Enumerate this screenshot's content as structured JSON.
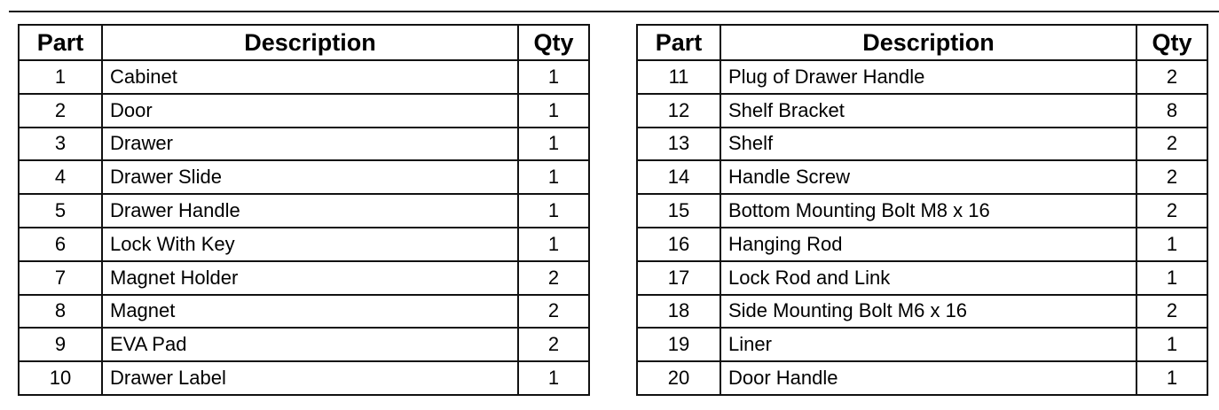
{
  "headers": {
    "part": "Part",
    "description": "Description",
    "qty": "Qty"
  },
  "left_table": [
    {
      "part": "1",
      "description": "Cabinet",
      "qty": "1"
    },
    {
      "part": "2",
      "description": "Door",
      "qty": "1"
    },
    {
      "part": "3",
      "description": "Drawer",
      "qty": "1"
    },
    {
      "part": "4",
      "description": "Drawer Slide",
      "qty": "1"
    },
    {
      "part": "5",
      "description": "Drawer Handle",
      "qty": "1"
    },
    {
      "part": "6",
      "description": "Lock With Key",
      "qty": "1"
    },
    {
      "part": "7",
      "description": "Magnet Holder",
      "qty": "2"
    },
    {
      "part": "8",
      "description": "Magnet",
      "qty": "2"
    },
    {
      "part": "9",
      "description": "EVA Pad",
      "qty": "2"
    },
    {
      "part": "10",
      "description": "Drawer Label",
      "qty": "1"
    }
  ],
  "right_table": [
    {
      "part": "11",
      "description": "Plug of Drawer Handle",
      "qty": "2"
    },
    {
      "part": "12",
      "description": "Shelf Bracket",
      "qty": "8"
    },
    {
      "part": "13",
      "description": "Shelf",
      "qty": "2"
    },
    {
      "part": "14",
      "description": "Handle Screw",
      "qty": "2"
    },
    {
      "part": "15",
      "description": "Bottom Mounting Bolt M8 x 16",
      "qty": "2"
    },
    {
      "part": "16",
      "description": "Hanging Rod",
      "qty": "1"
    },
    {
      "part": "17",
      "description": "Lock Rod and Link",
      "qty": "1"
    },
    {
      "part": "18",
      "description": "Side Mounting Bolt M6 x 16",
      "qty": "2"
    },
    {
      "part": "19",
      "description": "Liner",
      "qty": "1"
    },
    {
      "part": "20",
      "description": "Door Handle",
      "qty": "1"
    }
  ]
}
